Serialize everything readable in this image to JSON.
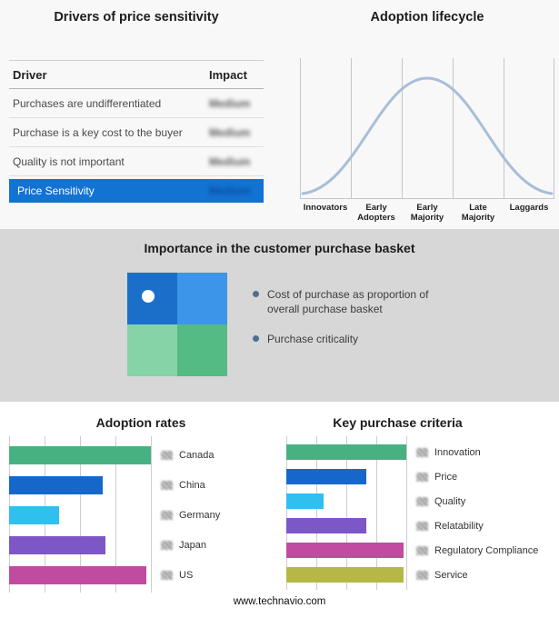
{
  "footer": {
    "url": "www.technavio.com"
  },
  "basket": {
    "title": "Importance in the customer purchase basket",
    "legend": [
      "Cost of purchase as proportion of overall purchase basket",
      "Purchase criticality"
    ],
    "quadrant_colors": {
      "top_left": "#1a70c9",
      "top_right": "#3c95e8",
      "bottom_left": "#85d3a6",
      "bottom_right": "#54bb85"
    }
  },
  "icons": {
    "adoption_row_icon": "blurred-flag-icon",
    "criteria_row_icon": "blurred-badge-icon",
    "quadrant_marker": "white-dot-marker"
  },
  "chart_data": [
    {
      "type": "table",
      "title": "Drivers of price sensitivity",
      "columns": [
        "Driver",
        "Impact"
      ],
      "rows": [
        [
          "Purchases are undifferentiated",
          "Medium"
        ],
        [
          "Purchase is a key cost to the buyer",
          "Medium"
        ],
        [
          "Quality is not important",
          "Medium"
        ]
      ],
      "highlight_row": [
        "Price Sensitivity",
        "Medium"
      ],
      "highlight_color": "#1273d2",
      "impact_values_blurred": true
    },
    {
      "type": "line",
      "title": "Adoption lifecycle",
      "categories": [
        "Innovators",
        "Early Adopters",
        "Early Majority",
        "Late Majority",
        "Laggards"
      ],
      "curve": "bell",
      "relative_heights_at_stage_centers": [
        12,
        55,
        100,
        55,
        12
      ],
      "line_color": "#a8bed8",
      "grid": true
    },
    {
      "type": "bar",
      "title": "Adoption rates",
      "orientation": "horizontal",
      "categories": [
        "Canada",
        "China",
        "Germany",
        "Japan",
        "US"
      ],
      "values": [
        100,
        66,
        35,
        68,
        97
      ],
      "colors": [
        "#48b181",
        "#1568c9",
        "#2fc0f0",
        "#7c57c5",
        "#c14b9e"
      ],
      "xlim": [
        0,
        100
      ],
      "units": "percent of axis max (estimated from gridlines)",
      "grid": true
    },
    {
      "type": "bar",
      "title": "Key purchase criteria",
      "orientation": "horizontal",
      "categories": [
        "Innovation",
        "Price",
        "Quality",
        "Relatability",
        "Regulatory Compliance",
        "Service"
      ],
      "values": [
        100,
        67,
        31,
        67,
        98,
        98
      ],
      "colors": [
        "#48b181",
        "#1568c9",
        "#2fc0f0",
        "#7c57c5",
        "#c14b9e",
        "#b5b845"
      ],
      "xlim": [
        0,
        100
      ],
      "units": "percent of axis max (estimated from gridlines)",
      "grid": true
    }
  ]
}
